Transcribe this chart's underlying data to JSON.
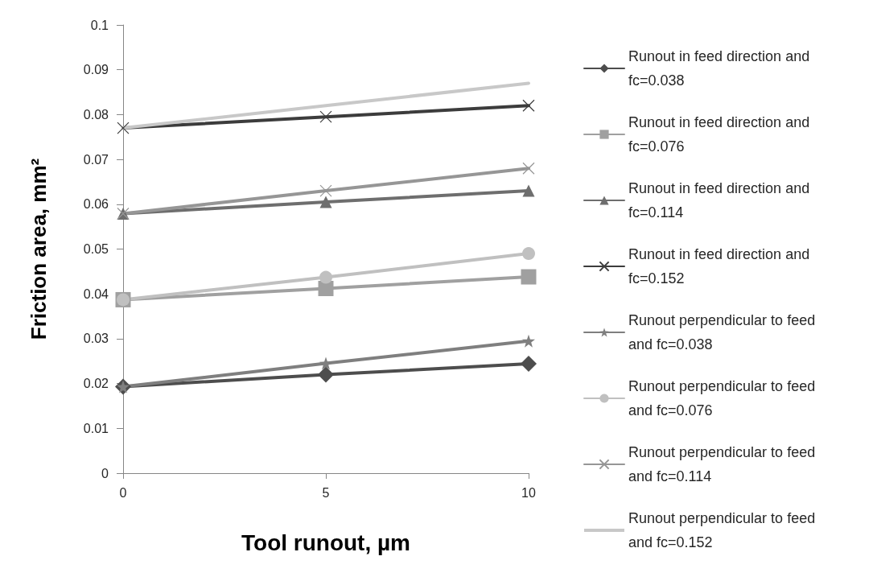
{
  "chart_data": {
    "type": "line",
    "xlabel": "Tool runout, µm",
    "ylabel": "Friction area, mm²",
    "x": [
      0,
      5,
      10
    ],
    "xlim": [
      0,
      10
    ],
    "xticks": [
      0,
      5,
      10
    ],
    "ylim": [
      0,
      0.1
    ],
    "yticks": [
      0,
      0.01,
      0.02,
      0.03,
      0.04,
      0.05,
      0.06,
      0.07,
      0.08,
      0.09,
      0.1
    ],
    "grid": false,
    "legend": "right",
    "series": [
      {
        "name": "Runout in feed direction and fc=0.038",
        "color": "#4d4d4d",
        "marker": "diamond",
        "values": [
          0.0193,
          0.022,
          0.0244
        ]
      },
      {
        "name": "Runout in feed direction and fc=0.076",
        "color": "#a0a0a0",
        "marker": "square",
        "values": [
          0.0387,
          0.0412,
          0.0438
        ]
      },
      {
        "name": "Runout in feed direction and fc=0.114",
        "color": "#6e6e6e",
        "marker": "triangle",
        "values": [
          0.0579,
          0.0605,
          0.063
        ]
      },
      {
        "name": "Runout in feed direction and fc=0.152",
        "color": "#3c3c3c",
        "marker": "cross",
        "values": [
          0.077,
          0.0795,
          0.082
        ]
      },
      {
        "name": "Runout perpendicular to feed and fc=0.038",
        "color": "#7f7f7f",
        "marker": "star",
        "values": [
          0.0193,
          0.0245,
          0.0295
        ]
      },
      {
        "name": "Runout perpendicular to feed and fc=0.076",
        "color": "#c0c0c0",
        "marker": "circle",
        "values": [
          0.0387,
          0.0437,
          0.049
        ]
      },
      {
        "name": "Runout perpendicular to feed and fc=0.114",
        "color": "#969696",
        "marker": "cross",
        "values": [
          0.0579,
          0.063,
          0.068
        ]
      },
      {
        "name": "Runout perpendicular to feed and fc=0.152",
        "color": "#c8c8c8",
        "marker": "none",
        "values": [
          0.077,
          0.082,
          0.087
        ]
      }
    ]
  }
}
